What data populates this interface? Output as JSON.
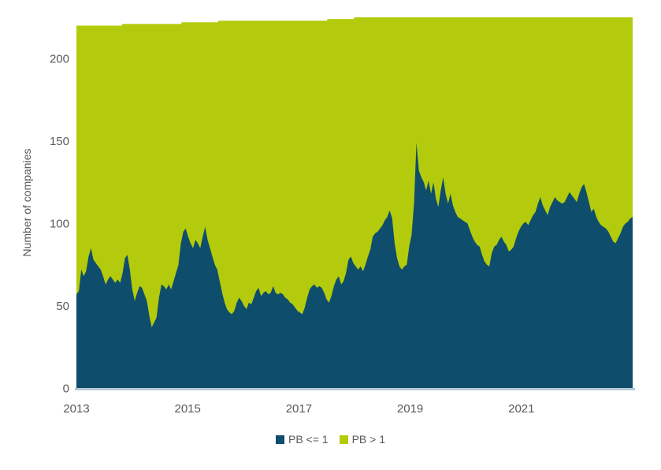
{
  "chart_data": {
    "type": "area",
    "stacked": true,
    "title": "",
    "xlabel": "",
    "ylabel": "Number of companies",
    "x_range": [
      2013.0,
      2023.0
    ],
    "ylim": [
      0,
      225
    ],
    "y_ticks": [
      0,
      50,
      100,
      150,
      200
    ],
    "x_ticks": [
      2013,
      2015,
      2017,
      2019,
      2021
    ],
    "grid": false,
    "legend_position": "bottom-center",
    "legend": [
      {
        "label": "PB <= 1",
        "color": "#0E4D6C"
      },
      {
        "label": "PB > 1",
        "color": "#B3CB0C"
      }
    ],
    "colors": {
      "pb_le_1": "#0E4D6C",
      "pb_gt_1": "#B3CB0C",
      "axis_line": "#B4C7D2",
      "text": "#595959",
      "background": "#FFFFFF"
    },
    "series": [
      {
        "name": "PB <= 1",
        "color": "#0E4D6C",
        "x_start": 2013.0,
        "x_end": 2023.0,
        "sampling": "evenly-spaced",
        "values": [
          57,
          59,
          72,
          68,
          71,
          80,
          85,
          78,
          76,
          74,
          72,
          68,
          63,
          66,
          68,
          66,
          64,
          66,
          64,
          70,
          79,
          81,
          72,
          60,
          53,
          58,
          62,
          61,
          57,
          53,
          44,
          37,
          40,
          43,
          55,
          63,
          62,
          60,
          63,
          60,
          65,
          70,
          75,
          88,
          95,
          97,
          92,
          88,
          85,
          90,
          88,
          85,
          92,
          98,
          90,
          85,
          80,
          75,
          72,
          65,
          58,
          52,
          48,
          46,
          45,
          47,
          52,
          55,
          53,
          50,
          48,
          52,
          51,
          55,
          59,
          61,
          56,
          58,
          59,
          57,
          58,
          62,
          58,
          57,
          58,
          57,
          55,
          54,
          52,
          51,
          49,
          47,
          46,
          45,
          49,
          55,
          60,
          62,
          63,
          61,
          62,
          61,
          58,
          54,
          52,
          56,
          62,
          66,
          68,
          63,
          65,
          70,
          78,
          80,
          76,
          74,
          72,
          74,
          71,
          75,
          80,
          84,
          92,
          94,
          95,
          97,
          99,
          102,
          104,
          108,
          103,
          88,
          79,
          74,
          72,
          74,
          75,
          86,
          93,
          112,
          149,
          132,
          128,
          125,
          120,
          126,
          118,
          125,
          115,
          110,
          120,
          128,
          118,
          112,
          118,
          111,
          107,
          104,
          103,
          102,
          101,
          100,
          96,
          92,
          89,
          87,
          86,
          81,
          77,
          75,
          74,
          82,
          86,
          87,
          90,
          92,
          89,
          87,
          83,
          84,
          86,
          91,
          95,
          98,
          100,
          101,
          99,
          102,
          105,
          107,
          112,
          116,
          111,
          108,
          105,
          110,
          113,
          116,
          114,
          113,
          112,
          113,
          116,
          119,
          117,
          115,
          113,
          118,
          122,
          124,
          119,
          113,
          107,
          109,
          104,
          101,
          99,
          98,
          97,
          95,
          92,
          89,
          88,
          91,
          94,
          98,
          100,
          101,
          103,
          104
        ]
      },
      {
        "name": "PB > 1",
        "color": "#B3CB0C",
        "definition": "total index constituents minus companies with PB <= 1",
        "total_constituents_steps": [
          {
            "until": 2013.82,
            "total": 220
          },
          {
            "until": 2014.89,
            "total": 221
          },
          {
            "until": 2015.55,
            "total": 222
          },
          {
            "until": 2017.51,
            "total": 223
          },
          {
            "until": 2017.99,
            "total": 224
          },
          {
            "until": 2023.0,
            "total": 225
          }
        ]
      }
    ]
  }
}
